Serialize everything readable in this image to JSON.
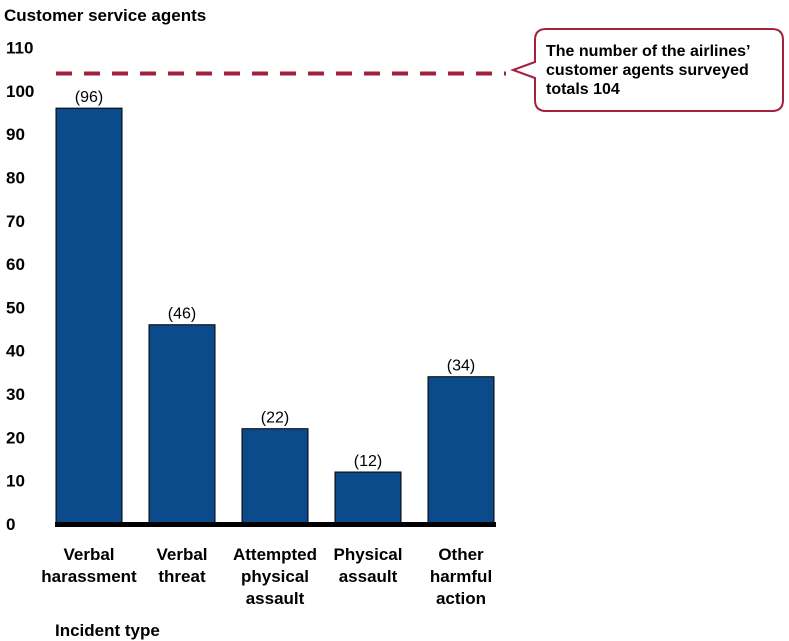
{
  "chart_data": {
    "type": "bar",
    "ylabel": "Customer service agents",
    "xlabel": "Incident type",
    "ylim": [
      0,
      110
    ],
    "yticks": [
      0,
      10,
      20,
      30,
      40,
      50,
      60,
      70,
      80,
      90,
      100,
      110
    ],
    "categories": [
      [
        "Verbal",
        "harassment"
      ],
      [
        "Verbal",
        "threat"
      ],
      [
        "Attempted",
        "physical",
        "assault"
      ],
      [
        "Physical",
        "assault"
      ],
      [
        "Other",
        "harmful",
        "action"
      ]
    ],
    "values": [
      96,
      46,
      22,
      12,
      34
    ],
    "data_labels": [
      "(96)",
      "(46)",
      "(22)",
      "(12)",
      "(34)"
    ],
    "reference_line": {
      "value": 104,
      "style": "dashed",
      "annotation": [
        "The number of the airlines’",
        "customer agents surveyed",
        "totals 104"
      ]
    },
    "grid": false,
    "colors": {
      "bar": "#0b4a8b",
      "bar_stroke": "#000000",
      "reference": "#a3213f",
      "axis": "#000000"
    }
  }
}
